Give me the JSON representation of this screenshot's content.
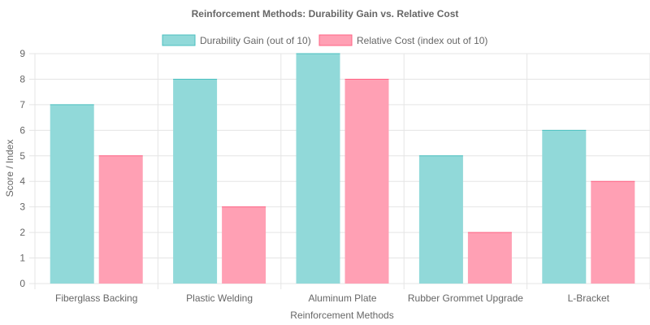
{
  "chart_data": {
    "type": "bar",
    "title": "Reinforcement Methods: Durability Gain vs. Relative Cost",
    "xlabel": "Reinforcement Methods",
    "ylabel": "Score / Index",
    "categories": [
      "Fiberglass Backing",
      "Plastic Welding",
      "Aluminum Plate",
      "Rubber Grommet Upgrade",
      "L-Bracket"
    ],
    "series": [
      {
        "name": "Durability Gain (out of 10)",
        "values": [
          7,
          8,
          9,
          5,
          6
        ],
        "color": "#4bc0c0",
        "fill": "#91d9d9"
      },
      {
        "name": "Relative Cost (index out of 10)",
        "values": [
          5,
          3,
          8,
          2,
          4
        ],
        "color": "#ff6384",
        "fill": "#ffa0b4"
      }
    ],
    "ylim": [
      0,
      9
    ],
    "yticks": [
      "0",
      "1",
      "2",
      "3",
      "4",
      "5",
      "6",
      "7",
      "8",
      "9"
    ],
    "grid": true,
    "legend_position": "top"
  }
}
